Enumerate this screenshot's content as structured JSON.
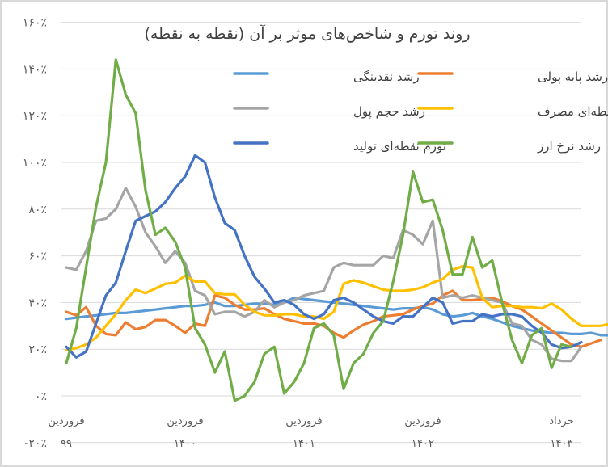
{
  "chart_data": {
    "type": "line",
    "title": "روند تورم و شاخص‌های موثر بر آن (نقطه به نقطه)",
    "xlabel": "",
    "ylabel": "",
    "ylim": [
      -20,
      160
    ],
    "grid": true,
    "legend_position": "top-right-inside",
    "y_ticks": [
      "۱۶۰٪",
      "۱۴۰٪",
      "۱۲۰٪",
      "۱۰۰٪",
      "۸۰٪",
      "۶۰٪",
      "۴۰٪",
      "۲۰٪",
      "۰٪",
      "-۲۰٪"
    ],
    "y_tick_values": [
      160,
      140,
      120,
      100,
      80,
      60,
      40,
      20,
      0,
      -20
    ],
    "x_tick_labels": [
      {
        "index": 0,
        "line1": "فروردین",
        "line2": "۹۹"
      },
      {
        "index": 12,
        "line1": "فروردین",
        "line2": "۱۴۰۰"
      },
      {
        "index": 24,
        "line1": "فروردین",
        "line2": "۱۴۰۱"
      },
      {
        "index": 36,
        "line1": "فروردین",
        "line2": "۱۴۰۲"
      },
      {
        "index": 50,
        "line1": "خرداد",
        "line2": "۱۴۰۳"
      }
    ],
    "series": [
      {
        "name": "رشد نقدینگی",
        "color": "#5b9bd5",
        "values": [
          33,
          33.5,
          34,
          34.5,
          35,
          35.5,
          35.5,
          36,
          36.5,
          37,
          37.5,
          38,
          38.5,
          38.5,
          39,
          40,
          38.5,
          38.5,
          39,
          39.5,
          39.5,
          39,
          40,
          42,
          41.5,
          41,
          40.5,
          40,
          39.5,
          39,
          38.5,
          38,
          37.5,
          37,
          37.5,
          37.5,
          38,
          37,
          35,
          34,
          34.5,
          35.5,
          34,
          33,
          31.5,
          30,
          29,
          28,
          27.5,
          27,
          27,
          26.5,
          26.5,
          27,
          26,
          26,
          27,
          28,
          24,
          22,
          25,
          26.5,
          27
        ]
      },
      {
        "name": "رشد پایه پولی",
        "color": "#ed7d31",
        "values": [
          36,
          34.5,
          38,
          30,
          26.5,
          26,
          31.5,
          28.5,
          29.5,
          32.5,
          32.5,
          30,
          27,
          31,
          30,
          43,
          42,
          39,
          37,
          37,
          37.5,
          35,
          33,
          32,
          31,
          31,
          30,
          27,
          25,
          28,
          30.5,
          32,
          34,
          34.5,
          35,
          37,
          38.5,
          39.5,
          43,
          45,
          41,
          41,
          41.5,
          42,
          40.5,
          38.5,
          37,
          34,
          31,
          28,
          25,
          22,
          21,
          22.5,
          24
        ]
      },
      {
        "name": "رشد حجم پول",
        "color": "#a5a5a5",
        "values": [
          55,
          54,
          62,
          75,
          76,
          80,
          89,
          81,
          70,
          64,
          57,
          62,
          57,
          45,
          43,
          35,
          36,
          36,
          34,
          36,
          41,
          38,
          40,
          41,
          43,
          44,
          45,
          55,
          57,
          56,
          56,
          56,
          60,
          59,
          71,
          69,
          65,
          75,
          42,
          43,
          42,
          43,
          42,
          41,
          40,
          31,
          30,
          24,
          22,
          16,
          15,
          15,
          21
        ]
      },
      {
        "name": "تورم نقطه‌ای مصرف",
        "color": "#ffc000",
        "values": [
          19.5,
          20.5,
          22,
          25,
          30,
          35,
          41,
          45.5,
          44,
          46,
          48,
          48.5,
          51.5,
          49,
          49,
          44,
          43.5,
          43.5,
          39,
          36,
          34.5,
          34.5,
          35,
          35,
          34,
          34,
          33,
          36,
          48,
          49.5,
          48.5,
          47,
          45.5,
          45,
          45,
          45.5,
          46.5,
          48.5,
          50,
          54,
          55.5,
          55,
          42,
          38,
          38.5,
          38.5,
          38,
          38,
          37.5,
          39.5,
          37,
          33,
          30,
          30,
          30,
          31,
          31.5
        ]
      },
      {
        "name": "تورم نقطه‌ای تولید",
        "color": "#4472c4",
        "values": [
          21,
          16.5,
          19,
          31,
          43,
          48.5,
          62,
          75,
          77,
          79,
          83,
          89,
          94,
          103,
          100,
          85,
          74,
          71,
          60,
          51,
          46,
          40,
          41,
          39,
          35,
          33,
          35,
          41,
          42,
          40,
          37,
          34,
          32,
          31,
          34,
          34,
          38,
          42,
          40,
          31,
          32,
          32,
          35,
          34,
          35,
          35,
          34,
          30,
          27,
          22,
          20.5,
          21,
          23
        ]
      },
      {
        "name": "رشد نرخ ارز",
        "color": "#70ad47",
        "values": [
          14,
          29,
          55,
          81,
          100,
          144,
          129,
          121,
          88,
          69,
          72,
          66,
          55,
          29,
          22,
          10,
          19,
          -2,
          0,
          6,
          18,
          21,
          1,
          6,
          14,
          29,
          31,
          26,
          3,
          14,
          18,
          27,
          32,
          49,
          69,
          96,
          83,
          84,
          71,
          52,
          52,
          68,
          55,
          58,
          40,
          24,
          14,
          26,
          29,
          12,
          22,
          21
        ]
      }
    ]
  },
  "legend": {
    "items": [
      {
        "label": "رشد نقدینگی",
        "color": "#5b9bd5"
      },
      {
        "label": "رشد پایه پولی",
        "color": "#ed7d31"
      },
      {
        "label": "رشد حجم پول",
        "color": "#a5a5a5"
      },
      {
        "label": "تورم نقطه‌ای مصرف",
        "color": "#ffc000"
      },
      {
        "label": "تورم نقطه‌ای تولید",
        "color": "#4472c4"
      },
      {
        "label": "رشد نرخ ارز",
        "color": "#70ad47"
      }
    ]
  }
}
